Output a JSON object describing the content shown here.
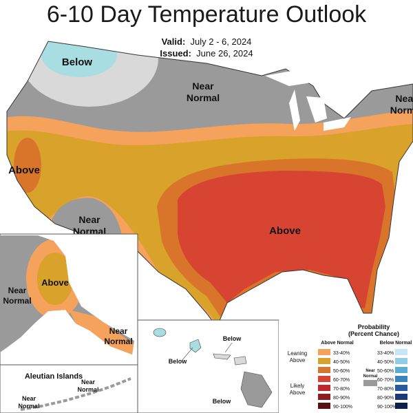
{
  "title": "6-10 Day Temperature Outlook",
  "valid_label": "Valid:",
  "valid_dates": "July 2 - 6, 2024",
  "issued_label": "Issued:",
  "issued_date": "June 26, 2024",
  "regions": {
    "below_north": "Below",
    "near_normal_north": [
      "Near",
      "Normal"
    ],
    "near_normal_ne": [
      "Near",
      "Norm"
    ],
    "above_west": "Above",
    "near_normal_sw": [
      "Near",
      "Normal"
    ],
    "above_southeast": "Above",
    "alaska_near_normal": [
      "Near",
      "Normal"
    ],
    "alaska_above": "Above",
    "alaska_se_near_normal": [
      "Near",
      "Normal"
    ],
    "aleutian_islands": "Aleutian Islands",
    "aleutian_near_normal_1": [
      "Near",
      "Normal"
    ],
    "aleutian_near_normal_2": [
      "Near",
      "Normal"
    ],
    "hawaii_below_1": "Below",
    "hawaii_below_2": "Below",
    "hawaii_below_3": "Below"
  },
  "legend": {
    "title": "Probability",
    "subtitle": "(Percent Chance)",
    "above_header": "Above Normal",
    "below_header": "Below Normal",
    "leaning_above": [
      "Leaning",
      "Above"
    ],
    "likely_above": [
      "Likely",
      "Above"
    ],
    "near_normal": [
      "Near",
      "Normal"
    ],
    "above_bins": [
      {
        "range": "33-40%",
        "color": "#f4a25c"
      },
      {
        "range": "40-50%",
        "color": "#d9a22a"
      },
      {
        "range": "50-60%",
        "color": "#d9752a"
      },
      {
        "range": "60-70%",
        "color": "#d84432"
      },
      {
        "range": "70-80%",
        "color": "#c2272d"
      },
      {
        "range": "80-90%",
        "color": "#8f1b22"
      },
      {
        "range": "90-100%",
        "color": "#5a0f14"
      }
    ],
    "below_bins": [
      {
        "range": "33-40%",
        "color": "#c7e6f5"
      },
      {
        "range": "40-50%",
        "color": "#8fcde8"
      },
      {
        "range": "50-60%",
        "color": "#5aaed6"
      },
      {
        "range": "60-70%",
        "color": "#3a85c0"
      },
      {
        "range": "70-80%",
        "color": "#2a5a9e"
      },
      {
        "range": "80-90%",
        "color": "#1c3a78"
      },
      {
        "range": "90-100%",
        "color": "#0f1f4d"
      }
    ],
    "near_normal_color": "#9a9a9a"
  },
  "colors": {
    "near_normal": "#9a9a9a",
    "below_light": "#d9d9d9",
    "below_blue": "#a8dde2",
    "above_33_40": "#f4a25c",
    "above_40_50": "#d9a22a",
    "above_50_60": "#d9752a",
    "above_60_70": "#d84432"
  }
}
